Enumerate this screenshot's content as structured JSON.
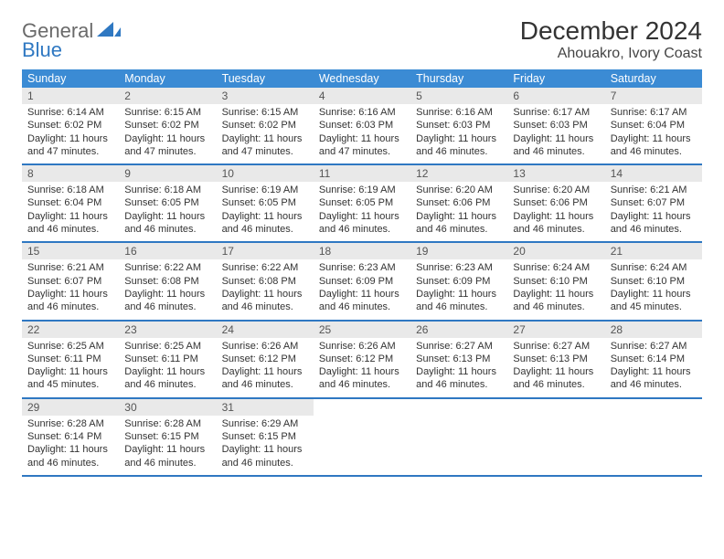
{
  "logo": {
    "line1": "General",
    "line2": "Blue"
  },
  "title": "December 2024",
  "location": "Ahouakro, Ivory Coast",
  "colors": {
    "header_bg": "#3b8bd4",
    "header_text": "#ffffff",
    "rule": "#2f78c2",
    "daynum_bg": "#e9e9e9",
    "body_text": "#333333",
    "logo_gray": "#6a6a6a",
    "logo_blue": "#2f78c2"
  },
  "typography": {
    "title_fontsize": 28,
    "location_fontsize": 16,
    "dayheader_fontsize": 12.5,
    "cell_fontsize": 11
  },
  "day_headers": [
    "Sunday",
    "Monday",
    "Tuesday",
    "Wednesday",
    "Thursday",
    "Friday",
    "Saturday"
  ],
  "weeks": [
    [
      {
        "n": "1",
        "sr": "6:14 AM",
        "ss": "6:02 PM",
        "dl": "11 hours and 47 minutes."
      },
      {
        "n": "2",
        "sr": "6:15 AM",
        "ss": "6:02 PM",
        "dl": "11 hours and 47 minutes."
      },
      {
        "n": "3",
        "sr": "6:15 AM",
        "ss": "6:02 PM",
        "dl": "11 hours and 47 minutes."
      },
      {
        "n": "4",
        "sr": "6:16 AM",
        "ss": "6:03 PM",
        "dl": "11 hours and 47 minutes."
      },
      {
        "n": "5",
        "sr": "6:16 AM",
        "ss": "6:03 PM",
        "dl": "11 hours and 46 minutes."
      },
      {
        "n": "6",
        "sr": "6:17 AM",
        "ss": "6:03 PM",
        "dl": "11 hours and 46 minutes."
      },
      {
        "n": "7",
        "sr": "6:17 AM",
        "ss": "6:04 PM",
        "dl": "11 hours and 46 minutes."
      }
    ],
    [
      {
        "n": "8",
        "sr": "6:18 AM",
        "ss": "6:04 PM",
        "dl": "11 hours and 46 minutes."
      },
      {
        "n": "9",
        "sr": "6:18 AM",
        "ss": "6:05 PM",
        "dl": "11 hours and 46 minutes."
      },
      {
        "n": "10",
        "sr": "6:19 AM",
        "ss": "6:05 PM",
        "dl": "11 hours and 46 minutes."
      },
      {
        "n": "11",
        "sr": "6:19 AM",
        "ss": "6:05 PM",
        "dl": "11 hours and 46 minutes."
      },
      {
        "n": "12",
        "sr": "6:20 AM",
        "ss": "6:06 PM",
        "dl": "11 hours and 46 minutes."
      },
      {
        "n": "13",
        "sr": "6:20 AM",
        "ss": "6:06 PM",
        "dl": "11 hours and 46 minutes."
      },
      {
        "n": "14",
        "sr": "6:21 AM",
        "ss": "6:07 PM",
        "dl": "11 hours and 46 minutes."
      }
    ],
    [
      {
        "n": "15",
        "sr": "6:21 AM",
        "ss": "6:07 PM",
        "dl": "11 hours and 46 minutes."
      },
      {
        "n": "16",
        "sr": "6:22 AM",
        "ss": "6:08 PM",
        "dl": "11 hours and 46 minutes."
      },
      {
        "n": "17",
        "sr": "6:22 AM",
        "ss": "6:08 PM",
        "dl": "11 hours and 46 minutes."
      },
      {
        "n": "18",
        "sr": "6:23 AM",
        "ss": "6:09 PM",
        "dl": "11 hours and 46 minutes."
      },
      {
        "n": "19",
        "sr": "6:23 AM",
        "ss": "6:09 PM",
        "dl": "11 hours and 46 minutes."
      },
      {
        "n": "20",
        "sr": "6:24 AM",
        "ss": "6:10 PM",
        "dl": "11 hours and 46 minutes."
      },
      {
        "n": "21",
        "sr": "6:24 AM",
        "ss": "6:10 PM",
        "dl": "11 hours and 45 minutes."
      }
    ],
    [
      {
        "n": "22",
        "sr": "6:25 AM",
        "ss": "6:11 PM",
        "dl": "11 hours and 45 minutes."
      },
      {
        "n": "23",
        "sr": "6:25 AM",
        "ss": "6:11 PM",
        "dl": "11 hours and 46 minutes."
      },
      {
        "n": "24",
        "sr": "6:26 AM",
        "ss": "6:12 PM",
        "dl": "11 hours and 46 minutes."
      },
      {
        "n": "25",
        "sr": "6:26 AM",
        "ss": "6:12 PM",
        "dl": "11 hours and 46 minutes."
      },
      {
        "n": "26",
        "sr": "6:27 AM",
        "ss": "6:13 PM",
        "dl": "11 hours and 46 minutes."
      },
      {
        "n": "27",
        "sr": "6:27 AM",
        "ss": "6:13 PM",
        "dl": "11 hours and 46 minutes."
      },
      {
        "n": "28",
        "sr": "6:27 AM",
        "ss": "6:14 PM",
        "dl": "11 hours and 46 minutes."
      }
    ],
    [
      {
        "n": "29",
        "sr": "6:28 AM",
        "ss": "6:14 PM",
        "dl": "11 hours and 46 minutes."
      },
      {
        "n": "30",
        "sr": "6:28 AM",
        "ss": "6:15 PM",
        "dl": "11 hours and 46 minutes."
      },
      {
        "n": "31",
        "sr": "6:29 AM",
        "ss": "6:15 PM",
        "dl": "11 hours and 46 minutes."
      },
      null,
      null,
      null,
      null
    ]
  ],
  "labels": {
    "sunrise": "Sunrise:",
    "sunset": "Sunset:",
    "daylight": "Daylight:"
  }
}
